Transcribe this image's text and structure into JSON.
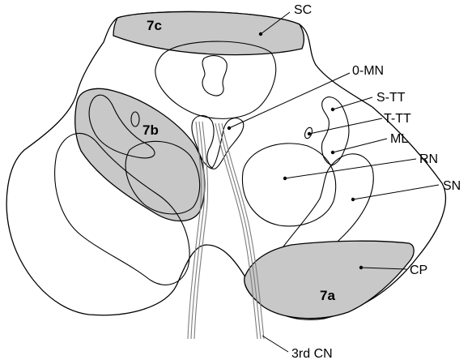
{
  "labels": {
    "sc": "SC",
    "mn": "0-MN",
    "stt": "S-TT",
    "ttt": "T-TT",
    "ml": "ML",
    "rn": "RN",
    "sn": "SN",
    "cp": "CP",
    "cn3": "3rd CN",
    "r7a": "7a",
    "r7b": "7b",
    "r7c": "7c"
  },
  "colors": {
    "shaded_region": "#c8c8c8",
    "outline": "#000000",
    "nerve": "#7d7d7d",
    "background": "#ffffff"
  }
}
